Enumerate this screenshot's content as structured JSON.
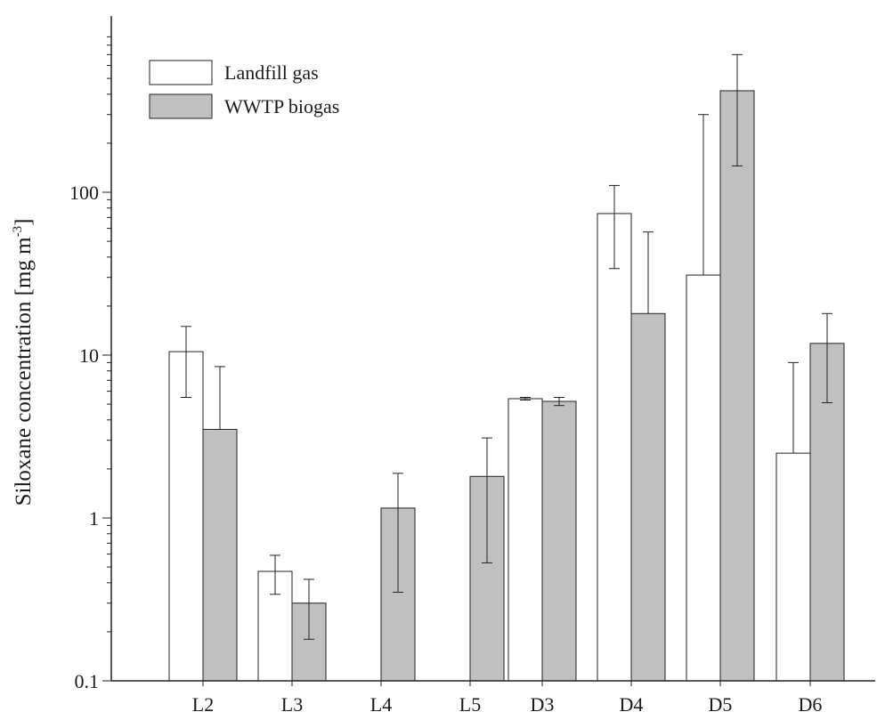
{
  "chart_data": {
    "type": "bar",
    "categories": [
      "L2",
      "L3",
      "L4",
      "L5",
      "D3",
      "D4",
      "D5",
      "D6"
    ],
    "series": [
      {
        "name": "Landfill gas",
        "color": "#ffffff",
        "values": [
          10.5,
          0.47,
          null,
          null,
          5.4,
          74,
          31,
          2.5
        ],
        "err_low": [
          5.5,
          0.34,
          null,
          null,
          5.3,
          34,
          null,
          null
        ],
        "err_high": [
          15,
          0.59,
          null,
          null,
          5.5,
          110,
          300,
          9
        ]
      },
      {
        "name": "WWTP biogas",
        "color": "#c0c0c0",
        "values": [
          3.5,
          0.3,
          1.15,
          1.8,
          5.2,
          18,
          420,
          11.8
        ],
        "err_low": [
          null,
          0.18,
          0.35,
          0.53,
          4.9,
          null,
          145,
          5.1
        ],
        "err_high": [
          8.5,
          0.42,
          1.88,
          3.1,
          5.5,
          57,
          700,
          18
        ]
      }
    ],
    "ylabel": "Siloxane concentration [mg m",
    "ylabel_superscript": "-3",
    "ylabel_close": "]",
    "yscale": "log",
    "ylim": [
      0.1,
      900
    ],
    "yticks": [
      {
        "value": 0.1,
        "label": "0.1"
      },
      {
        "value": 1,
        "label": "1"
      },
      {
        "value": 10,
        "label": "10"
      },
      {
        "value": 100,
        "label": "100"
      }
    ],
    "legend": "top-left",
    "grid": false
  }
}
